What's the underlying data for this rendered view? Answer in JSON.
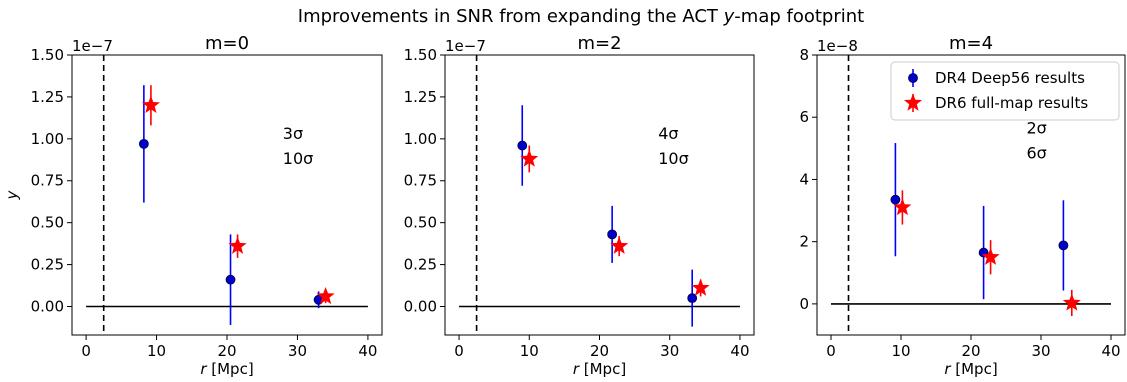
{
  "figure_title": "Improvements in SNR from expanding the ACT y-map footprint",
  "title_parts": [
    "Improvements in SNR from expanding the ACT ",
    "y",
    "-map footprint"
  ],
  "colors": {
    "dr4": "#0000ff",
    "dr4_marker": "#0000cc",
    "dr6": "#ff0000",
    "axis": "#000000"
  },
  "legend": {
    "position": "upper-right of third panel",
    "items": [
      {
        "label": "DR4 Deep56 results",
        "marker": "circle",
        "color": "#0000cc"
      },
      {
        "label": "DR6 full-map results",
        "marker": "star",
        "color": "#ff0000"
      }
    ]
  },
  "chart_data": [
    {
      "type": "scatter",
      "title": "m=0",
      "xlabel_italic": "r",
      "xlabel_rest": " [Mpc]",
      "ylabel": "y",
      "scale_label": "1e−7",
      "xlim": [
        -2,
        42
      ],
      "ylim": [
        -0.17,
        1.5
      ],
      "xticks": [
        0,
        10,
        20,
        30,
        40
      ],
      "xtick_labels": [
        "0",
        "10",
        "20",
        "30",
        "40"
      ],
      "yticks": [
        0,
        0.25,
        0.5,
        0.75,
        1.0,
        1.25,
        1.5
      ],
      "ytick_labels": [
        "0.00",
        "0.25",
        "0.50",
        "0.75",
        "1.00",
        "1.25",
        "1.50"
      ],
      "vline_x": 2.5,
      "hline": {
        "y": 0,
        "xmin": 0,
        "xmax": 40
      },
      "series": [
        {
          "name": "DR4 Deep56 results",
          "x": [
            8.2,
            20.5,
            33.0
          ],
          "y": [
            0.97,
            0.16,
            0.04
          ],
          "yerr": [
            0.35,
            0.27,
            0.05
          ]
        },
        {
          "name": "DR6 full-map results",
          "x": [
            9.2,
            21.5,
            34.0
          ],
          "y": [
            1.2,
            0.36,
            0.06
          ],
          "yerr": [
            0.12,
            0.07,
            0.04
          ]
        }
      ],
      "snr_labels": [
        {
          "text": "3σ",
          "series": "DR4 Deep56 results"
        },
        {
          "text": "10σ",
          "series": "DR6 full-map results"
        }
      ]
    },
    {
      "type": "scatter",
      "title": "m=2",
      "xlabel_italic": "r",
      "xlabel_rest": " [Mpc]",
      "scale_label": "1e−7",
      "xlim": [
        -2,
        42
      ],
      "ylim": [
        -0.17,
        1.5
      ],
      "xticks": [
        0,
        10,
        20,
        30,
        40
      ],
      "xtick_labels": [
        "0",
        "10",
        "20",
        "30",
        "40"
      ],
      "yticks": [
        0,
        0.25,
        0.5,
        0.75,
        1.0,
        1.25,
        1.5
      ],
      "ytick_labels": [
        "0.00",
        "0.25",
        "0.50",
        "0.75",
        "1.00",
        "1.25",
        "1.50"
      ],
      "vline_x": 2.5,
      "hline": {
        "y": 0,
        "xmin": 0,
        "xmax": 40
      },
      "series": [
        {
          "name": "DR4 Deep56 results",
          "x": [
            9.0,
            21.8,
            33.2
          ],
          "y": [
            0.96,
            0.43,
            0.05
          ],
          "yerr": [
            0.24,
            0.17,
            0.17
          ]
        },
        {
          "name": "DR6 full-map results",
          "x": [
            10.0,
            22.8,
            34.4
          ],
          "y": [
            0.88,
            0.36,
            0.11
          ],
          "yerr": [
            0.08,
            0.06,
            0.05
          ]
        }
      ],
      "snr_labels": [
        {
          "text": "4σ",
          "series": "DR4 Deep56 results"
        },
        {
          "text": "10σ",
          "series": "DR6 full-map results"
        }
      ]
    },
    {
      "type": "scatter",
      "title": "m=4",
      "xlabel_italic": "r",
      "xlabel_rest": " [Mpc]",
      "scale_label": "1e−8",
      "xlim": [
        -2,
        42
      ],
      "ylim": [
        -1.0,
        8
      ],
      "xticks": [
        0,
        10,
        20,
        30,
        40
      ],
      "xtick_labels": [
        "0",
        "10",
        "20",
        "30",
        "40"
      ],
      "yticks": [
        0,
        2,
        4,
        6,
        8
      ],
      "ytick_labels": [
        "0",
        "2",
        "4",
        "6",
        "8"
      ],
      "vline_x": 2.5,
      "hline": {
        "y": 0,
        "xmin": 0,
        "xmax": 40
      },
      "series": [
        {
          "name": "DR4 Deep56 results",
          "x": [
            9.2,
            21.8,
            33.2
          ],
          "y": [
            3.35,
            1.65,
            1.88
          ],
          "yerr": [
            1.82,
            1.5,
            1.45
          ]
        },
        {
          "name": "DR6 full-map results",
          "x": [
            10.2,
            22.8,
            34.4
          ],
          "y": [
            3.1,
            1.5,
            0.03
          ],
          "yerr": [
            0.55,
            0.55,
            0.42
          ]
        }
      ],
      "snr_labels": [
        {
          "text": "2σ",
          "series": "DR4 Deep56 results"
        },
        {
          "text": "6σ",
          "series": "DR6 full-map results"
        }
      ]
    }
  ]
}
